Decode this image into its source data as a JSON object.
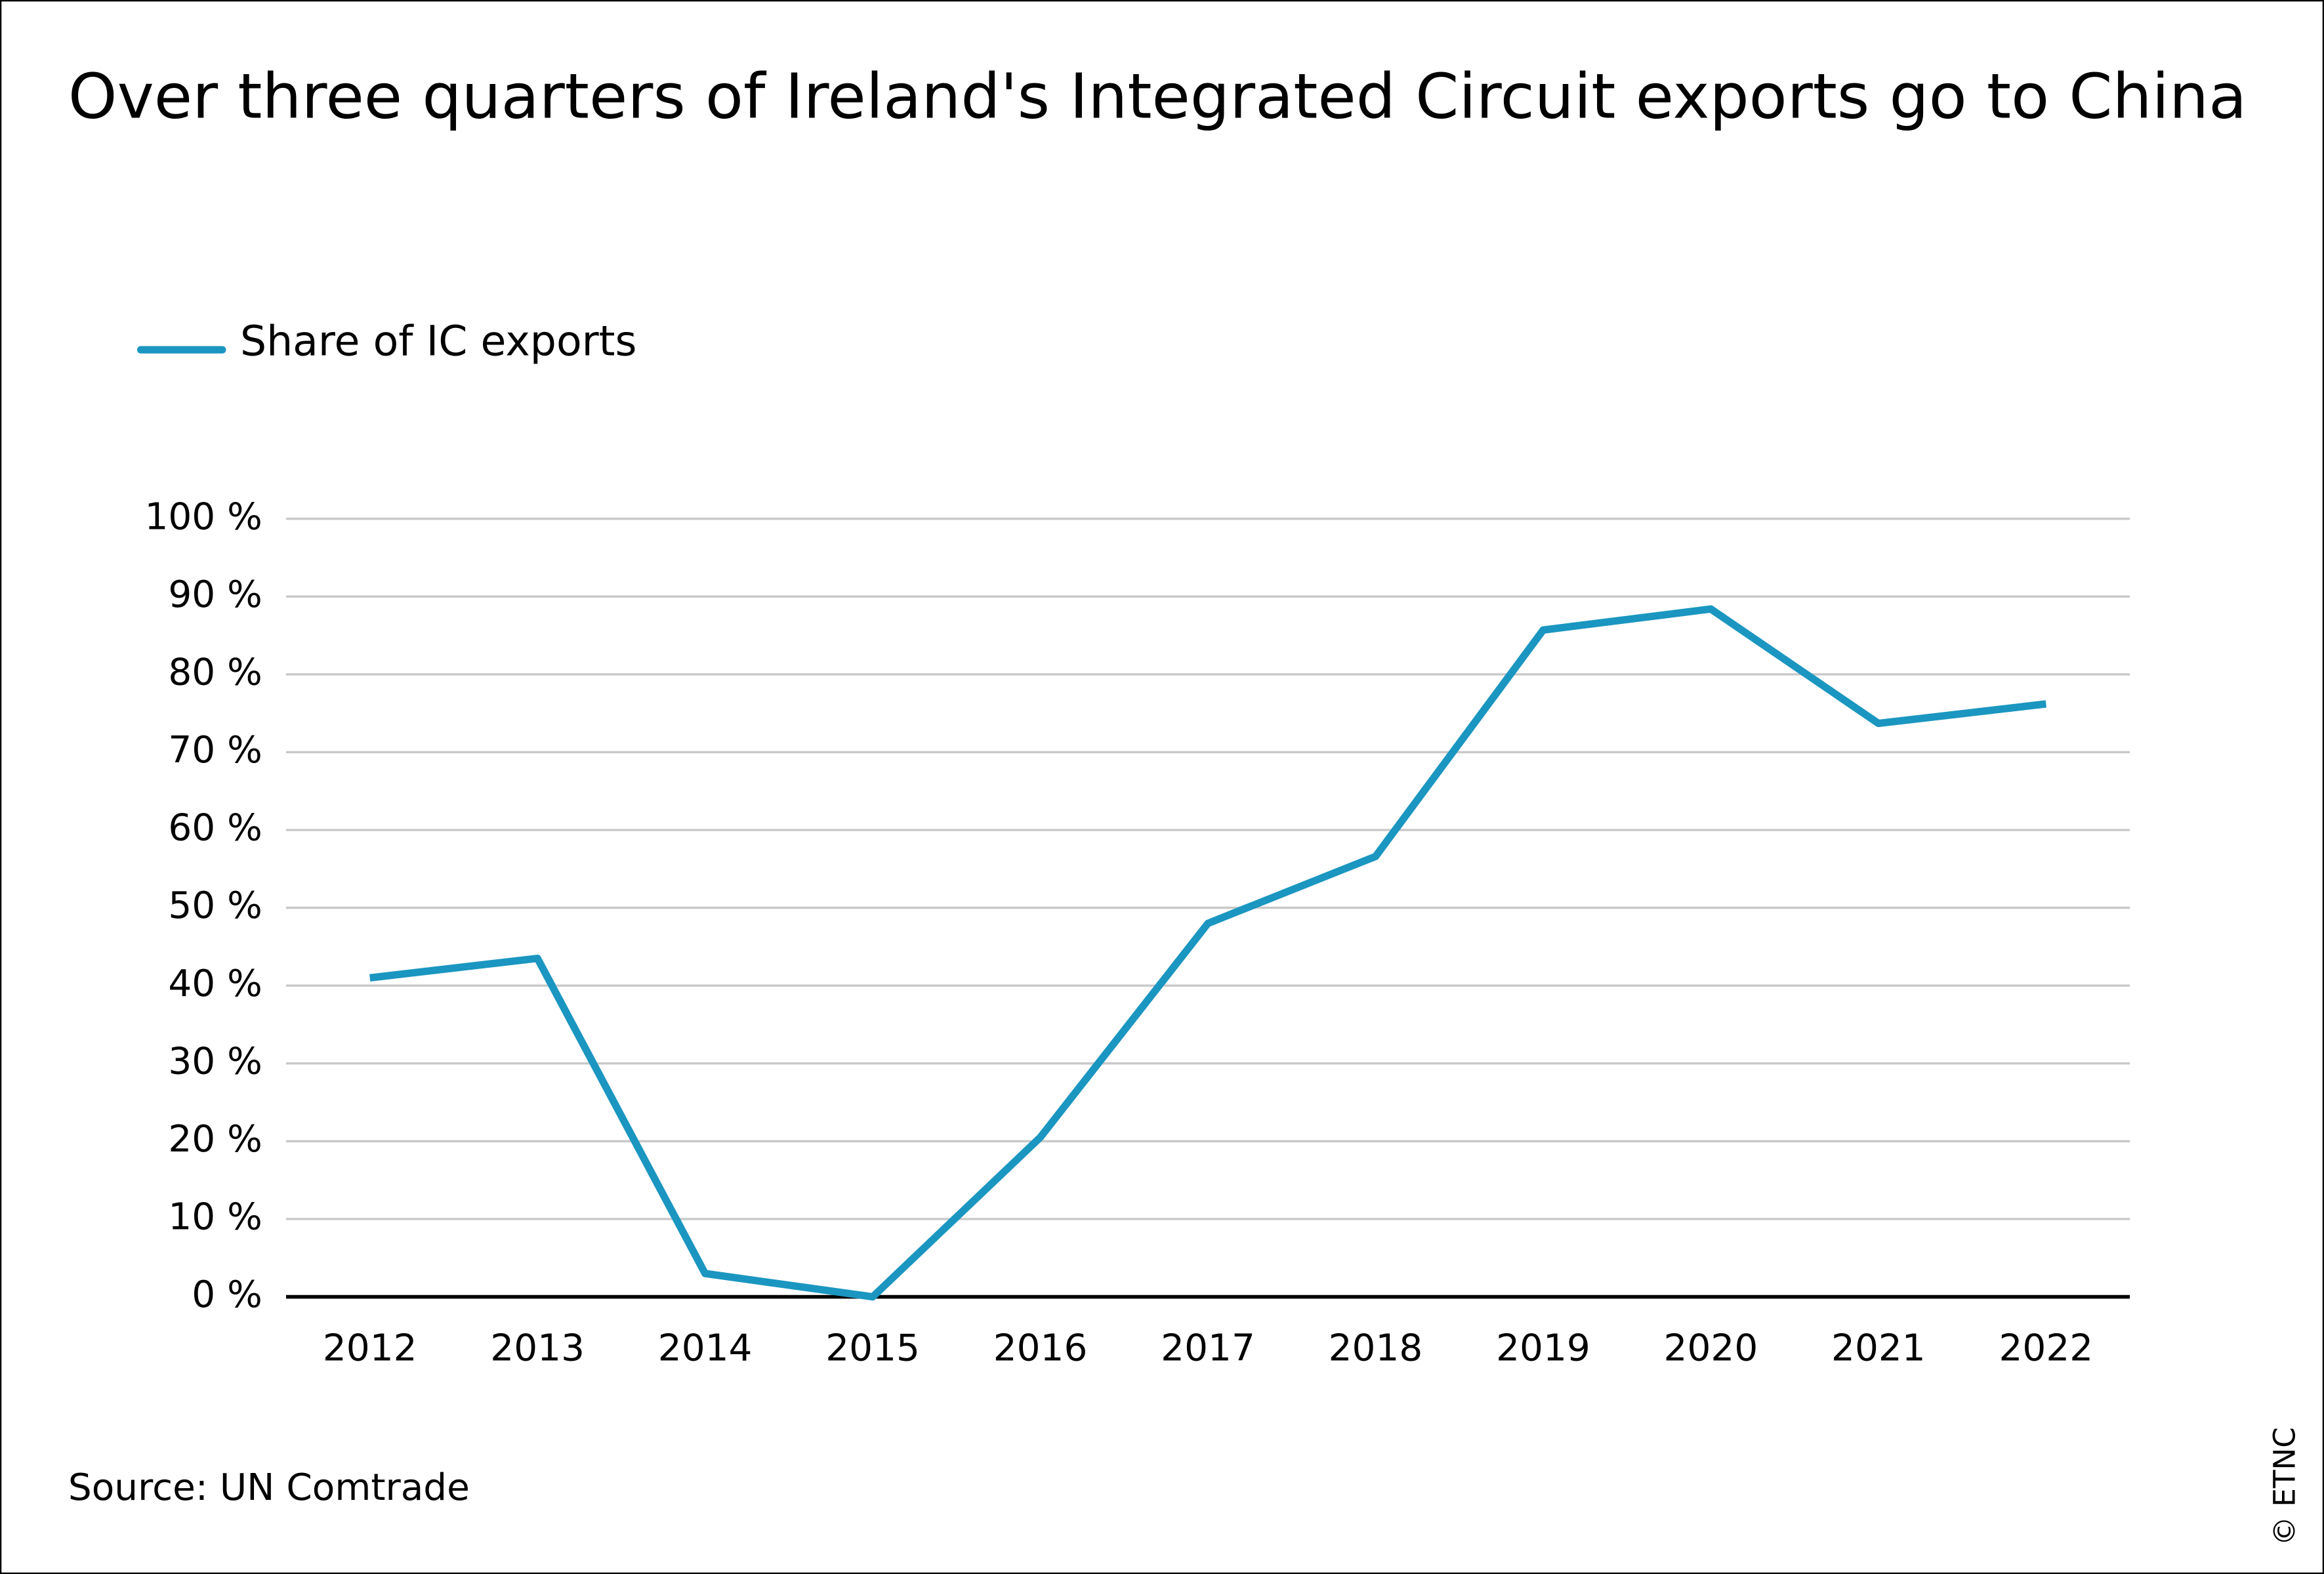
{
  "chart_data": {
    "type": "line",
    "title": "Over three quarters of Ireland's Integrated Circuit exports go to China",
    "categories": [
      "2012",
      "2013",
      "2014",
      "2015",
      "2016",
      "2017",
      "2018",
      "2019",
      "2020",
      "2021",
      "2022"
    ],
    "series": [
      {
        "name": "Share of IC exports",
        "color": "#1a96c0",
        "values": [
          41,
          43.5,
          3,
          0,
          20.5,
          48,
          56.6,
          85.7,
          88.4,
          73.7,
          76.2
        ]
      }
    ],
    "ylim": [
      0,
      100
    ],
    "yticks": [
      {
        "value": 0,
        "label": "0 %"
      },
      {
        "value": 10,
        "label": "10 %"
      },
      {
        "value": 20,
        "label": "20 %"
      },
      {
        "value": 30,
        "label": "30 %"
      },
      {
        "value": 40,
        "label": "40 %"
      },
      {
        "value": 50,
        "label": "50 %"
      },
      {
        "value": 60,
        "label": "60 %"
      },
      {
        "value": 70,
        "label": "70 %"
      },
      {
        "value": 80,
        "label": "80 %"
      },
      {
        "value": 90,
        "label": "90 %"
      },
      {
        "value": 100,
        "label": "100 %"
      }
    ],
    "grid": true,
    "legend": "top-left",
    "source": "Source: UN Comtrade",
    "credit": "© ETNC"
  }
}
